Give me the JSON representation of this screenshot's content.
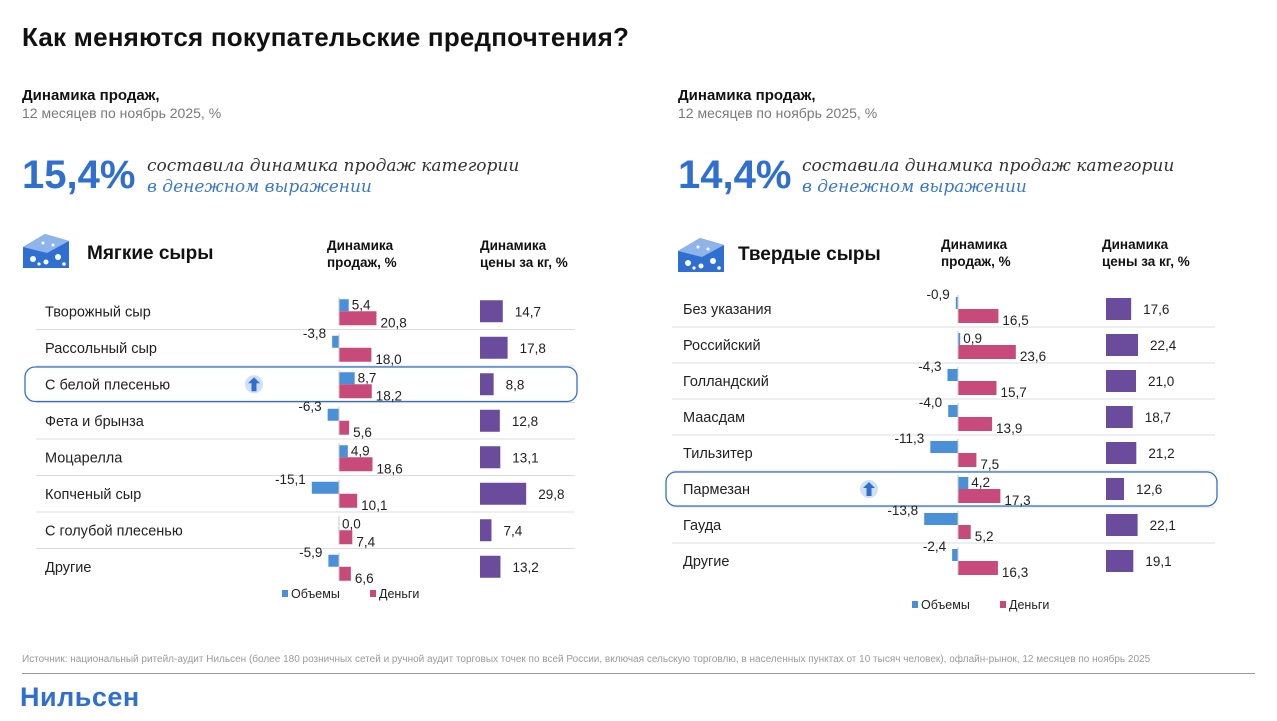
{
  "title": "Как меняются покупательские предпочтения?",
  "source": "Источник: национальный ритейл-аудит Нильсен (более 180 розничных сетей и ручной аудит торговых точек по всей России, включая сельскую торговлю, в населенных пунктах от 10 тысяч человек), офлайн-рынок, 12 месяцев по ноябрь 2025",
  "logo": "Нильсен",
  "colors": {
    "volume": "#4a90d9",
    "money": "#c84a7a",
    "price": "#6a4b9c",
    "accent": "#2f6fcf",
    "highlight": "#2f6fcf"
  },
  "left": {
    "subtitle": "Динамика продаж,",
    "period": "12 месяцев по ноябрь 2025, %",
    "big_value": "15,4%",
    "statement_line1": "составила динамика продаж категории",
    "statement_line2": "в денежном выражении",
    "category": "Мягкие сыры",
    "col1_line1": "Динамика",
    "col1_line2": "продаж, %",
    "col2_line1": "Динамика",
    "col2_line2": "цены за кг, %",
    "legend_volume": "Объемы",
    "legend_money": "Деньги"
  },
  "right": {
    "subtitle": "Динамика продаж,",
    "period": "12 месяцев по ноябрь 2025, %",
    "big_value": "14,4%",
    "statement_line1": "составила динамика продаж категории",
    "statement_line2": "в денежном выражении",
    "category": "Твердые сыры",
    "col1_line1": "Динамика",
    "col1_line2": "продаж, %",
    "col2_line1": "Динамика",
    "col2_line2": "цены за кг, %",
    "legend_volume": "Объемы",
    "legend_money": "Деньги"
  },
  "chart_data": [
    {
      "type": "bar",
      "title": "Мягкие сыры",
      "categories": [
        "Творожный сыр",
        "Рассольный сыр",
        "С белой плесенью",
        "Фета и брынза",
        "Моцарелла",
        "Копченый сыр",
        "С голубой плесенью",
        "Другие"
      ],
      "series": [
        {
          "name": "Объемы",
          "values": [
            5.4,
            -3.8,
            8.7,
            -6.3,
            4.9,
            -15.1,
            0.0,
            -5.9
          ],
          "labels": [
            "5,4",
            "-3,8",
            "8,7",
            "-6,3",
            "4,9",
            "-15,1",
            "0,0",
            "-5,9"
          ]
        },
        {
          "name": "Деньги",
          "values": [
            20.8,
            18.0,
            18.2,
            5.6,
            18.6,
            10.1,
            7.4,
            6.6
          ],
          "labels": [
            "20,8",
            "18,0",
            "18,2",
            "5,6",
            "18,6",
            "10,1",
            "7,4",
            "6,6"
          ]
        },
        {
          "name": "Динамика цены за кг",
          "values": [
            14.7,
            17.8,
            8.8,
            12.8,
            13.1,
            29.8,
            7.4,
            13.2
          ],
          "labels": [
            "14,7",
            "17,8",
            "8,8",
            "12,8",
            "13,1",
            "29,8",
            "7,4",
            "13,2"
          ]
        }
      ],
      "highlighted": "С белой плесенью",
      "legend": [
        "Объемы",
        "Деньги"
      ]
    },
    {
      "type": "bar",
      "title": "Твердые сыры",
      "categories": [
        "Без указания",
        "Российский",
        "Голландский",
        "Маасдам",
        "Тильзитер",
        "Пармезан",
        "Гауда",
        "Другие"
      ],
      "series": [
        {
          "name": "Объемы",
          "values": [
            -0.9,
            0.9,
            -4.3,
            -4.0,
            -11.3,
            4.2,
            -13.8,
            -2.4
          ],
          "labels": [
            "-0,9",
            "0,9",
            "-4,3",
            "-4,0",
            "-11,3",
            "4,2",
            "-13,8",
            "-2,4"
          ]
        },
        {
          "name": "Деньги",
          "values": [
            16.5,
            23.6,
            15.7,
            13.9,
            7.5,
            17.3,
            5.2,
            16.3
          ],
          "labels": [
            "16,5",
            "23,6",
            "15,7",
            "13,9",
            "7,5",
            "17,3",
            "5,2",
            "16,3"
          ]
        },
        {
          "name": "Динамика цены за кг",
          "values": [
            17.6,
            22.4,
            21.0,
            18.7,
            21.2,
            12.6,
            22.1,
            19.1
          ],
          "labels": [
            "17,6",
            "22,4",
            "21,0",
            "18,7",
            "21,2",
            "12,6",
            "22,1",
            "19,1"
          ]
        }
      ],
      "highlighted": "Пармезан",
      "legend": [
        "Объемы",
        "Деньги"
      ]
    }
  ]
}
